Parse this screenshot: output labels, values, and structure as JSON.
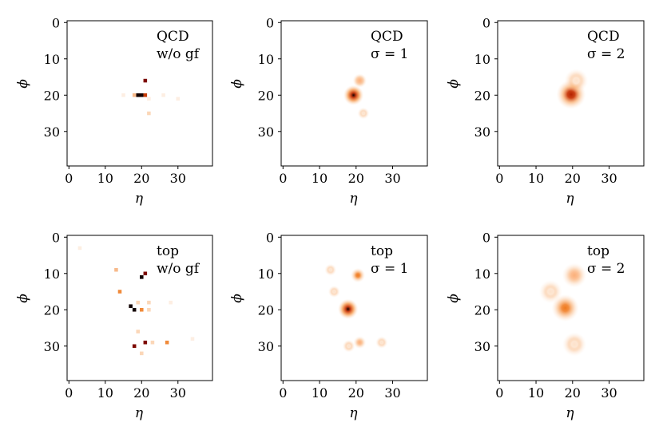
{
  "chart_data": [
    {
      "type": "heatmap",
      "title": "",
      "label_lines": [
        "QCD",
        "w/o gf"
      ],
      "xlabel": "η",
      "ylabel": "ϕ",
      "xlim": [
        -0.5,
        39.5
      ],
      "ylim": [
        39.5,
        -0.5
      ],
      "xticks": [
        0,
        10,
        20,
        30
      ],
      "yticks": [
        0,
        10,
        20,
        30
      ],
      "smoothing": 0,
      "blobs": [
        {
          "x": 19,
          "y": 20,
          "intensity": 1.0
        },
        {
          "x": 20,
          "y": 20,
          "intensity": 1.0
        },
        {
          "x": 21,
          "y": 16,
          "intensity": 0.85
        },
        {
          "x": 21,
          "y": 20,
          "intensity": 0.55
        },
        {
          "x": 18,
          "y": 20,
          "intensity": 0.25
        },
        {
          "x": 22,
          "y": 25,
          "intensity": 0.12
        },
        {
          "x": 22,
          "y": 21,
          "intensity": 0.06
        },
        {
          "x": 15,
          "y": 20,
          "intensity": 0.05
        },
        {
          "x": 26,
          "y": 20,
          "intensity": 0.04
        },
        {
          "x": 30,
          "y": 21,
          "intensity": 0.03
        }
      ]
    },
    {
      "type": "heatmap",
      "title": "",
      "label_lines": [
        "QCD",
        "σ = 1"
      ],
      "xlabel": "η",
      "ylabel": "ϕ",
      "xlim": [
        -0.5,
        39.5
      ],
      "ylim": [
        39.5,
        -0.5
      ],
      "xticks": [
        0,
        10,
        20,
        30
      ],
      "yticks": [
        0,
        10,
        20,
        30
      ],
      "smoothing": 1,
      "blobs": [
        {
          "x": 19.3,
          "y": 20,
          "intensity": 1.0
        },
        {
          "x": 21,
          "y": 16,
          "intensity": 0.3
        },
        {
          "x": 22,
          "y": 25,
          "intensity": 0.05
        }
      ]
    },
    {
      "type": "heatmap",
      "title": "",
      "label_lines": [
        "QCD",
        "σ = 2"
      ],
      "xlabel": "η",
      "ylabel": "ϕ",
      "xlim": [
        -0.5,
        39.5
      ],
      "ylim": [
        39.5,
        -0.5
      ],
      "xticks": [
        0,
        10,
        20,
        30
      ],
      "yticks": [
        0,
        10,
        20,
        30
      ],
      "smoothing": 2,
      "blobs": [
        {
          "x": 19.6,
          "y": 19.8,
          "intensity": 0.62
        },
        {
          "x": 21,
          "y": 16,
          "intensity": 0.08
        }
      ]
    },
    {
      "type": "heatmap",
      "title": "",
      "label_lines": [
        "top",
        "w/o gf"
      ],
      "xlabel": "η",
      "ylabel": "ϕ",
      "xlim": [
        -0.5,
        39.5
      ],
      "ylim": [
        39.5,
        -0.5
      ],
      "xticks": [
        0,
        10,
        20,
        30
      ],
      "yticks": [
        0,
        10,
        20,
        30
      ],
      "smoothing": 0,
      "blobs": [
        {
          "x": 18,
          "y": 20,
          "intensity": 1.0
        },
        {
          "x": 17,
          "y": 19,
          "intensity": 0.9
        },
        {
          "x": 20,
          "y": 11,
          "intensity": 0.95
        },
        {
          "x": 21,
          "y": 10,
          "intensity": 0.75
        },
        {
          "x": 21,
          "y": 29,
          "intensity": 0.85
        },
        {
          "x": 18,
          "y": 30,
          "intensity": 0.7
        },
        {
          "x": 27,
          "y": 29,
          "intensity": 0.45
        },
        {
          "x": 20,
          "y": 20,
          "intensity": 0.4
        },
        {
          "x": 14,
          "y": 15,
          "intensity": 0.3
        },
        {
          "x": 13,
          "y": 9,
          "intensity": 0.25
        },
        {
          "x": 19,
          "y": 26,
          "intensity": 0.15
        },
        {
          "x": 20,
          "y": 32,
          "intensity": 0.12
        },
        {
          "x": 22,
          "y": 20,
          "intensity": 0.15
        },
        {
          "x": 19,
          "y": 18,
          "intensity": 0.12
        },
        {
          "x": 22,
          "y": 18,
          "intensity": 0.12
        },
        {
          "x": 28,
          "y": 18,
          "intensity": 0.08
        },
        {
          "x": 23,
          "y": 29,
          "intensity": 0.12
        },
        {
          "x": 3,
          "y": 3,
          "intensity": 0.04
        },
        {
          "x": 34,
          "y": 28,
          "intensity": 0.04
        }
      ]
    },
    {
      "type": "heatmap",
      "title": "",
      "label_lines": [
        "top",
        "σ = 1"
      ],
      "xlabel": "η",
      "ylabel": "ϕ",
      "xlim": [
        -0.5,
        39.5
      ],
      "ylim": [
        39.5,
        -0.5
      ],
      "xticks": [
        0,
        10,
        20,
        30
      ],
      "yticks": [
        0,
        10,
        20,
        30
      ],
      "smoothing": 1,
      "blobs": [
        {
          "x": 17.8,
          "y": 19.8,
          "intensity": 1.0
        },
        {
          "x": 20.5,
          "y": 10.5,
          "intensity": 0.35
        },
        {
          "x": 21,
          "y": 29,
          "intensity": 0.15
        },
        {
          "x": 18,
          "y": 30,
          "intensity": 0.12
        },
        {
          "x": 27,
          "y": 29,
          "intensity": 0.08
        },
        {
          "x": 14,
          "y": 15,
          "intensity": 0.07
        },
        {
          "x": 13,
          "y": 9,
          "intensity": 0.05
        }
      ]
    },
    {
      "type": "heatmap",
      "title": "",
      "label_lines": [
        "top",
        "σ = 2"
      ],
      "xlabel": "η",
      "ylabel": "ϕ",
      "xlim": [
        -0.5,
        39.5
      ],
      "ylim": [
        39.5,
        -0.5
      ],
      "xticks": [
        0,
        10,
        20,
        30
      ],
      "yticks": [
        0,
        10,
        20,
        30
      ],
      "smoothing": 2,
      "blobs": [
        {
          "x": 18,
          "y": 19.5,
          "intensity": 0.42
        },
        {
          "x": 20.5,
          "y": 10.5,
          "intensity": 0.16
        },
        {
          "x": 20.5,
          "y": 29.5,
          "intensity": 0.09
        },
        {
          "x": 14,
          "y": 15,
          "intensity": 0.03
        }
      ]
    }
  ],
  "colors": {
    "colormap": "Oranges-like (white → orange → dark red → black)"
  }
}
